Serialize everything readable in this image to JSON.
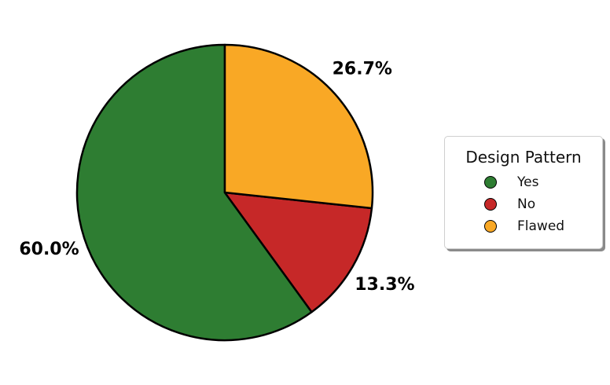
{
  "chart_data": {
    "type": "pie",
    "title": "",
    "categories": [
      "Yes",
      "No",
      "Flawed"
    ],
    "values": [
      60.0,
      13.3,
      26.7
    ],
    "labels": [
      "60.0%",
      "13.3%",
      "26.7%"
    ],
    "colors": [
      "#2e7d32",
      "#c62828",
      "#f9a825"
    ],
    "start_angle_deg": 90,
    "direction": "counterclockwise",
    "legend": {
      "title": "Design Pattern",
      "placement": "right",
      "entries": [
        "Yes",
        "No",
        "Flawed"
      ]
    }
  }
}
